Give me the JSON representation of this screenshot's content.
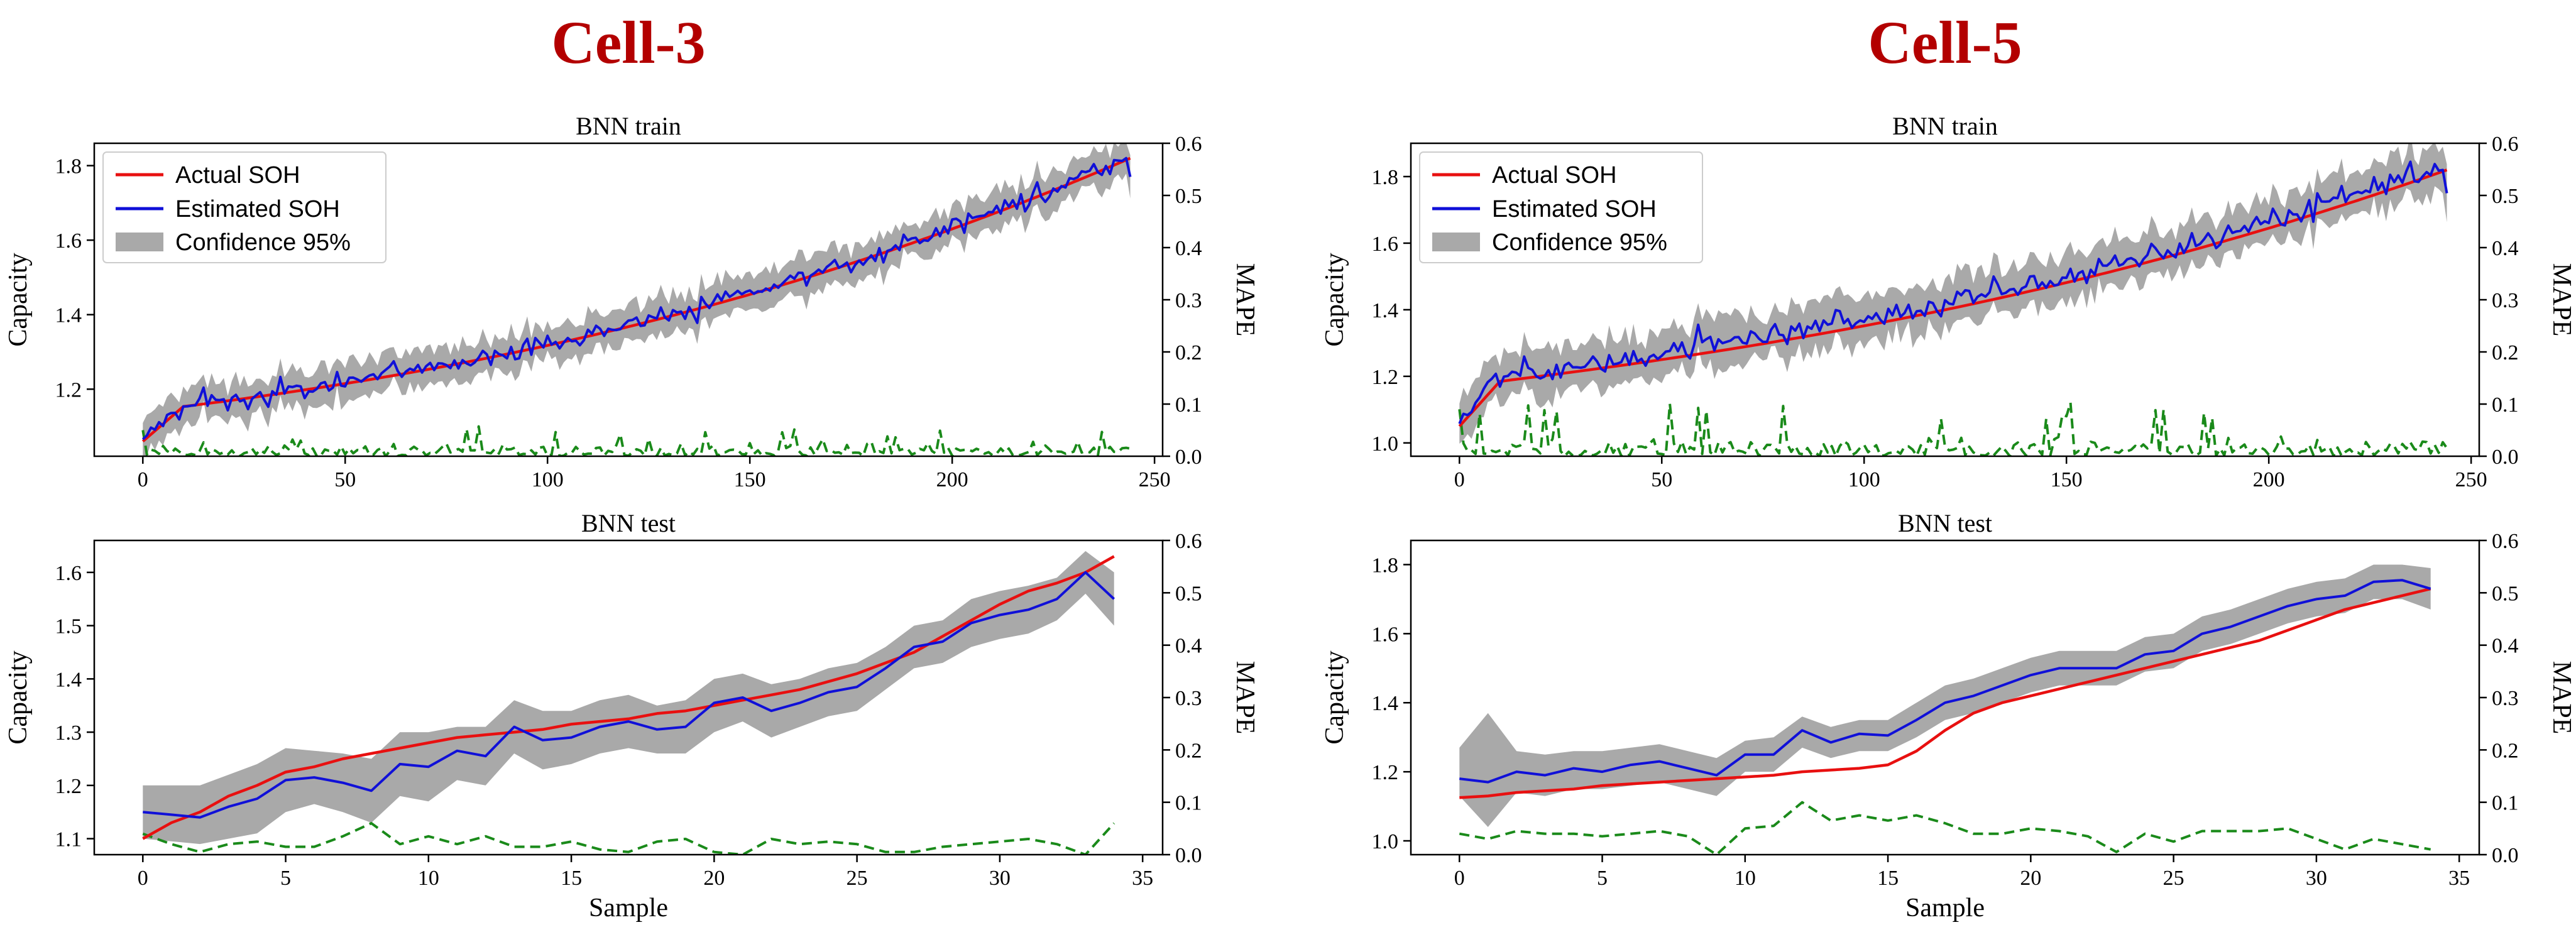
{
  "titles": [
    "Cell-3",
    "Cell-5"
  ],
  "legend": {
    "actual": "Actual SOH",
    "estimated": "Estimated SOH",
    "confidence": "Confidence 95%"
  },
  "colors": {
    "title": "#b30000",
    "actual": "#e81010",
    "estimated": "#1010d8",
    "confidence": "#a9a9a9",
    "mape": "#1a8a1a"
  },
  "chart_data": [
    {
      "cell": "Cell-3",
      "panel": "BNN train",
      "type": "line",
      "title": "BNN train",
      "xlabel": "",
      "ylabel": "Capacity",
      "y2label": "MAPE",
      "xlim": [
        -12,
        252
      ],
      "ylim": [
        1.02,
        1.86
      ],
      "y2lim": [
        0,
        0.6
      ],
      "xticks": [
        0,
        50,
        100,
        150,
        200,
        250
      ],
      "yticks": [
        1.2,
        1.4,
        1.6,
        1.8
      ],
      "y2ticks": [
        0.0,
        0.1,
        0.2,
        0.3,
        0.4,
        0.5,
        0.6
      ],
      "legend": "top-left",
      "grid": false,
      "n": 245,
      "actual_start": 1.06,
      "actual_end": 1.82,
      "actual_shape": "train3",
      "est_noise": 0.025,
      "band": 0.05,
      "mape_mean": 0.025,
      "mape_spike": 0.05,
      "est_end_value": 1.77
    },
    {
      "cell": "Cell-5",
      "panel": "BNN train",
      "type": "line",
      "title": "BNN train",
      "xlabel": "",
      "ylabel": "Capacity",
      "y2label": "MAPE",
      "xlim": [
        -12,
        252
      ],
      "ylim": [
        0.96,
        1.9
      ],
      "y2lim": [
        0,
        0.6
      ],
      "xticks": [
        0,
        50,
        100,
        150,
        200,
        250
      ],
      "yticks": [
        1.0,
        1.2,
        1.4,
        1.6,
        1.8
      ],
      "y2ticks": [
        0.0,
        0.1,
        0.2,
        0.3,
        0.4,
        0.5,
        0.6
      ],
      "legend": "top-left",
      "grid": false,
      "n": 245,
      "actual_start": 1.05,
      "actual_end": 1.82,
      "actual_shape": "train5",
      "est_noise": 0.03,
      "band": 0.07,
      "mape_mean": 0.03,
      "mape_spike": 0.09,
      "est_end_value": 1.75
    },
    {
      "cell": "Cell-3",
      "panel": "BNN test",
      "type": "line",
      "title": "BNN test",
      "xlabel": "Sample",
      "ylabel": "Capacity",
      "y2label": "MAPE",
      "xlim": [
        -1.7,
        35.7
      ],
      "ylim": [
        1.07,
        1.66
      ],
      "y2lim": [
        0,
        0.6
      ],
      "xticks": [
        0,
        5,
        10,
        15,
        20,
        25,
        30,
        35
      ],
      "yticks": [
        1.1,
        1.2,
        1.3,
        1.4,
        1.5,
        1.6
      ],
      "y2ticks": [
        0.0,
        0.1,
        0.2,
        0.3,
        0.4,
        0.5,
        0.6
      ],
      "legend": "none",
      "grid": false,
      "x": [
        0,
        1,
        2,
        3,
        4,
        5,
        6,
        7,
        8,
        9,
        10,
        11,
        12,
        13,
        14,
        15,
        16,
        17,
        18,
        19,
        20,
        21,
        22,
        23,
        24,
        25,
        26,
        27,
        28,
        29,
        30,
        31,
        32,
        33,
        34
      ],
      "actual": [
        1.1,
        1.13,
        1.15,
        1.18,
        1.2,
        1.225,
        1.235,
        1.25,
        1.26,
        1.27,
        1.28,
        1.29,
        1.295,
        1.3,
        1.305,
        1.315,
        1.32,
        1.325,
        1.335,
        1.34,
        1.35,
        1.36,
        1.37,
        1.38,
        1.395,
        1.41,
        1.43,
        1.45,
        1.48,
        1.51,
        1.54,
        1.565,
        1.58,
        1.6,
        1.63
      ],
      "estimated": [
        1.15,
        1.145,
        1.14,
        1.16,
        1.175,
        1.21,
        1.215,
        1.205,
        1.19,
        1.24,
        1.235,
        1.265,
        1.255,
        1.31,
        1.285,
        1.29,
        1.31,
        1.32,
        1.305,
        1.31,
        1.355,
        1.365,
        1.34,
        1.355,
        1.375,
        1.385,
        1.42,
        1.46,
        1.47,
        1.505,
        1.52,
        1.53,
        1.55,
        1.6,
        1.55
      ],
      "upper": [
        1.2,
        1.2,
        1.2,
        1.22,
        1.24,
        1.27,
        1.265,
        1.26,
        1.25,
        1.3,
        1.3,
        1.31,
        1.31,
        1.36,
        1.34,
        1.34,
        1.36,
        1.37,
        1.35,
        1.36,
        1.4,
        1.41,
        1.39,
        1.4,
        1.42,
        1.43,
        1.46,
        1.5,
        1.51,
        1.55,
        1.565,
        1.575,
        1.59,
        1.64,
        1.6
      ],
      "lower": [
        1.1,
        1.095,
        1.09,
        1.1,
        1.11,
        1.15,
        1.165,
        1.15,
        1.13,
        1.18,
        1.17,
        1.21,
        1.2,
        1.26,
        1.23,
        1.24,
        1.26,
        1.27,
        1.26,
        1.26,
        1.3,
        1.32,
        1.29,
        1.31,
        1.33,
        1.34,
        1.38,
        1.42,
        1.43,
        1.46,
        1.475,
        1.485,
        1.51,
        1.56,
        1.5
      ],
      "mape": [
        0.04,
        0.02,
        0.005,
        0.02,
        0.025,
        0.015,
        0.015,
        0.035,
        0.06,
        0.02,
        0.035,
        0.02,
        0.035,
        0.015,
        0.015,
        0.025,
        0.01,
        0.005,
        0.025,
        0.03,
        0.005,
        0.0,
        0.03,
        0.02,
        0.025,
        0.02,
        0.005,
        0.005,
        0.015,
        0.02,
        0.025,
        0.03,
        0.02,
        0.0,
        0.06
      ]
    },
    {
      "cell": "Cell-5",
      "panel": "BNN test",
      "type": "line",
      "title": "BNN test",
      "xlabel": "Sample",
      "ylabel": "Capacity",
      "y2label": "MAPE",
      "xlim": [
        -1.7,
        35.7
      ],
      "ylim": [
        0.96,
        1.87
      ],
      "y2lim": [
        0,
        0.6
      ],
      "xticks": [
        0,
        5,
        10,
        15,
        20,
        25,
        30,
        35
      ],
      "yticks": [
        1.0,
        1.2,
        1.4,
        1.6,
        1.8
      ],
      "y2ticks": [
        0.0,
        0.1,
        0.2,
        0.3,
        0.4,
        0.5,
        0.6
      ],
      "legend": "none",
      "grid": false,
      "x": [
        0,
        1,
        2,
        3,
        4,
        5,
        6,
        7,
        8,
        9,
        10,
        11,
        12,
        13,
        14,
        15,
        16,
        17,
        18,
        19,
        20,
        21,
        22,
        23,
        24,
        25,
        26,
        27,
        28,
        29,
        30,
        31,
        32,
        33,
        34
      ],
      "actual": [
        1.125,
        1.13,
        1.14,
        1.145,
        1.15,
        1.16,
        1.165,
        1.17,
        1.175,
        1.18,
        1.185,
        1.19,
        1.2,
        1.205,
        1.21,
        1.22,
        1.26,
        1.32,
        1.37,
        1.4,
        1.42,
        1.44,
        1.46,
        1.48,
        1.5,
        1.52,
        1.54,
        1.56,
        1.58,
        1.61,
        1.64,
        1.67,
        1.69,
        1.71,
        1.73
      ],
      "estimated": [
        1.18,
        1.17,
        1.2,
        1.19,
        1.21,
        1.2,
        1.22,
        1.23,
        1.21,
        1.19,
        1.25,
        1.25,
        1.32,
        1.285,
        1.31,
        1.305,
        1.35,
        1.4,
        1.42,
        1.45,
        1.48,
        1.5,
        1.5,
        1.5,
        1.54,
        1.55,
        1.6,
        1.62,
        1.65,
        1.68,
        1.7,
        1.71,
        1.75,
        1.755,
        1.73
      ],
      "upper": [
        1.27,
        1.37,
        1.26,
        1.25,
        1.26,
        1.26,
        1.27,
        1.28,
        1.26,
        1.24,
        1.29,
        1.3,
        1.36,
        1.33,
        1.35,
        1.35,
        1.4,
        1.45,
        1.47,
        1.5,
        1.53,
        1.55,
        1.55,
        1.55,
        1.59,
        1.6,
        1.65,
        1.67,
        1.7,
        1.73,
        1.75,
        1.76,
        1.8,
        1.8,
        1.79
      ],
      "lower": [
        1.13,
        1.04,
        1.14,
        1.13,
        1.15,
        1.15,
        1.16,
        1.17,
        1.15,
        1.13,
        1.2,
        1.2,
        1.27,
        1.24,
        1.26,
        1.26,
        1.3,
        1.35,
        1.37,
        1.4,
        1.43,
        1.45,
        1.45,
        1.45,
        1.49,
        1.5,
        1.55,
        1.57,
        1.6,
        1.63,
        1.65,
        1.66,
        1.7,
        1.7,
        1.67
      ],
      "mape": [
        0.04,
        0.03,
        0.045,
        0.04,
        0.04,
        0.035,
        0.04,
        0.045,
        0.035,
        0.0,
        0.05,
        0.055,
        0.1,
        0.065,
        0.075,
        0.065,
        0.075,
        0.06,
        0.04,
        0.04,
        0.05,
        0.045,
        0.035,
        0.005,
        0.04,
        0.025,
        0.045,
        0.045,
        0.045,
        0.05,
        0.03,
        0.01,
        0.03,
        0.02,
        0.01
      ]
    }
  ]
}
